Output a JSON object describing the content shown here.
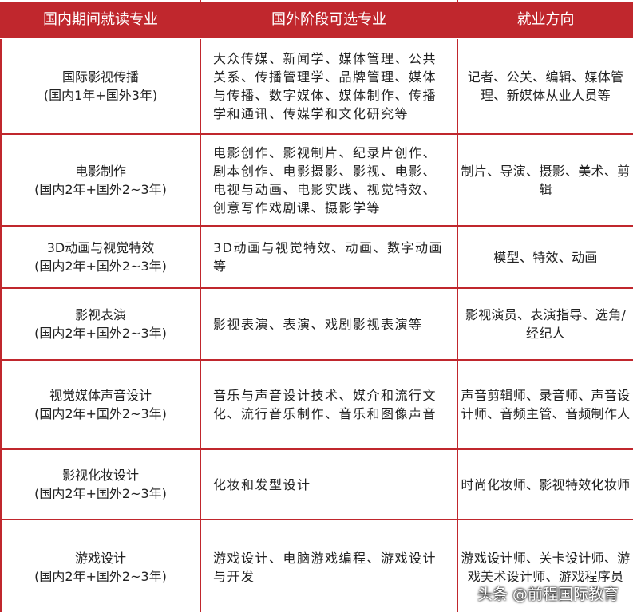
{
  "table": {
    "header": [
      "国内期间就读专业",
      "国外阶段可选专业",
      "就业方向"
    ],
    "rows": [
      {
        "major": "国际影视传播",
        "duration": "(国内1年+国外3年)",
        "overseas": "大众传媒、新闻学、媒体管理、公共关系、传播管理学、品牌管理、媒体与传播、数字媒体、媒体制作、传播学和通讯、传媒学和文化研究等",
        "careers": "记者、公关、编辑、媒体管理、新媒体从业人员等"
      },
      {
        "major": "电影制作",
        "duration": "(国内2年+国外2~3年)",
        "overseas": "电影创作、影视制片、纪录片创作、剧本创作、电影摄影、影视、电影、电视与动画、电影实践、视觉特效、创意写作戏剧课、摄影学等",
        "careers": "制片、导演、摄影、美术、剪辑"
      },
      {
        "major": "3D动画与视觉特效",
        "duration": "(国内2年+国外2~3年)",
        "overseas": "3D动画与视觉特效、动画、数字动画等",
        "careers": "模型、特效、动画"
      },
      {
        "major": "影视表演",
        "duration": "(国内2年+国外2~3年)",
        "overseas": "影视表演、表演、戏剧影视表演等",
        "careers": "影视演员、表演指导、选角/经纪人"
      },
      {
        "major": "视觉媒体声音设计",
        "duration": "(国内2年+国外2~3年)",
        "overseas": "音乐与声音设计技术、媒介和流行文化、流行音乐制作、音乐和图像声音",
        "careers": "声音剪辑师、录音师、声音设计师、音频主管、音频制作人"
      },
      {
        "major": "影视化妆设计",
        "duration": "(国内2年+国外2~3年)",
        "overseas": "化妆和发型设计",
        "careers": "时尚化妆师、影视特效化妆师"
      },
      {
        "major": "游戏设计",
        "duration": "(国内2年+国外2~3年)",
        "overseas": "游戏设计、电脑游戏编程、游戏设计与开发",
        "careers": "游戏设计师、关卡设计师、游戏美术设计师、游戏程序员"
      }
    ]
  },
  "watermark": "头条 @前程国际教育"
}
